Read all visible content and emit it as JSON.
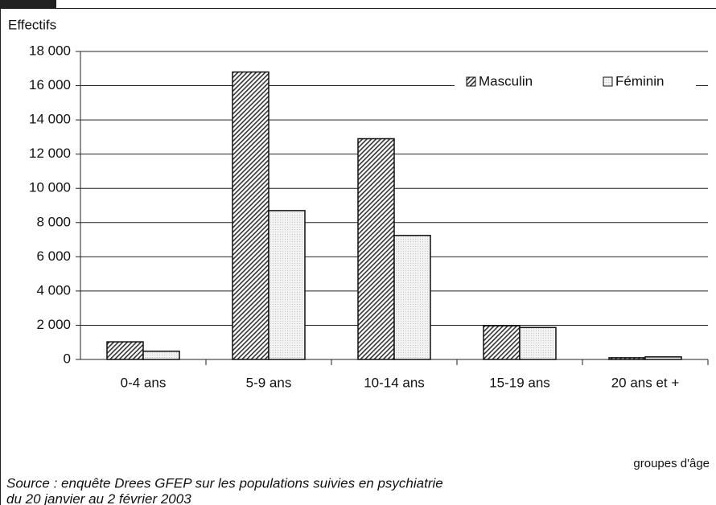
{
  "chart_data": {
    "type": "bar",
    "y_label": "Effectifs",
    "x_label": "groupes d'âge",
    "categories": [
      "0-4 ans",
      "5-9 ans",
      "10-14 ans",
      "15-19 ans",
      "20 ans et +"
    ],
    "series": [
      {
        "name": "Masculin",
        "color": "#333333",
        "values": [
          1030,
          16800,
          12900,
          1970,
          100
        ]
      },
      {
        "name": "Féminin",
        "color": "#c8c8c8",
        "values": [
          480,
          8700,
          7250,
          1870,
          150
        ]
      }
    ],
    "ylim": [
      0,
      18000
    ],
    "yticks": [
      0,
      {
        "value": 2000,
        "label": "2 000"
      },
      {
        "value": 4000,
        "label": "4 000"
      },
      {
        "value": 6000,
        "label": "6 000"
      },
      {
        "value": 8000,
        "label": "8 000"
      },
      {
        "value": 10000,
        "label": "10 000"
      },
      {
        "value": 12000,
        "label": "12 000"
      },
      {
        "value": 14000,
        "label": "14 000"
      },
      {
        "value": 16000,
        "label": "16 000"
      },
      {
        "value": 18000,
        "label": "18 000"
      }
    ],
    "grid": true,
    "legend": "top-right",
    "source": [
      "Source : enquête Drees GFEP sur les populations suivies en psychiatrie",
      "du 20 janvier au 2 février 2003"
    ]
  }
}
